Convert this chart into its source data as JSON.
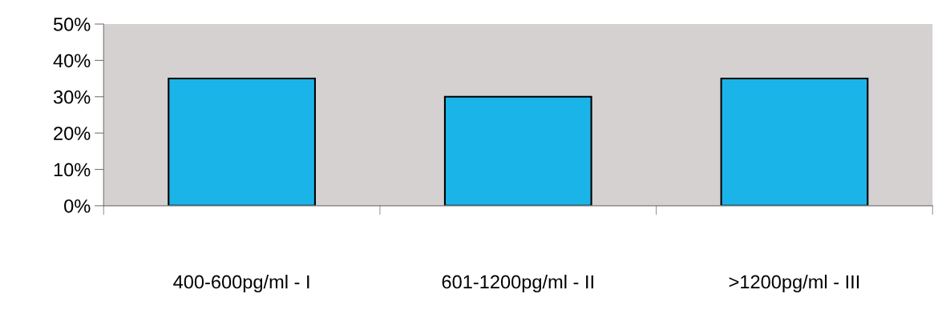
{
  "chart_data": {
    "type": "bar",
    "categories": [
      "400-600pg/ml - I",
      "601-1200pg/ml - II",
      ">1200pg/ml - III"
    ],
    "values": [
      35,
      30,
      35
    ],
    "color": "#1ab4e8",
    "ylim": [
      0,
      50
    ],
    "yticks": [
      {
        "value": 0,
        "label": "0%"
      },
      {
        "value": 10,
        "label": "10%"
      },
      {
        "value": 20,
        "label": "20%"
      },
      {
        "value": 30,
        "label": "30%"
      },
      {
        "value": 40,
        "label": "40%"
      },
      {
        "value": 50,
        "label": "50%"
      }
    ],
    "grid": false,
    "legend": false
  }
}
